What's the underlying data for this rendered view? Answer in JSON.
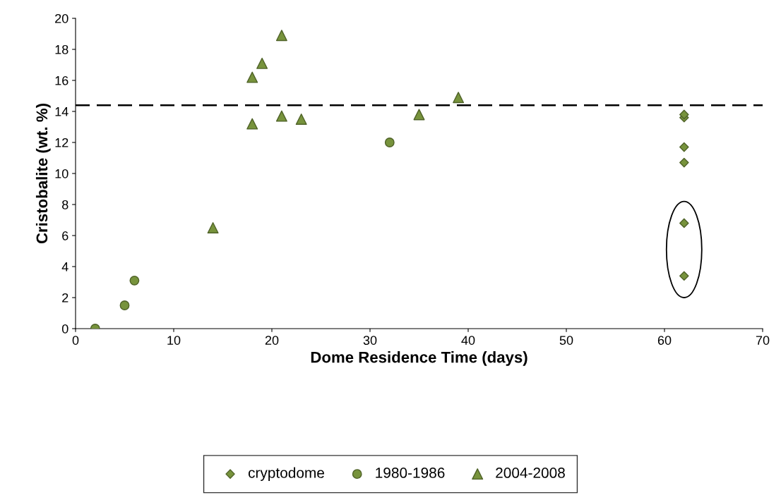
{
  "chart_data": {
    "type": "scatter",
    "xlabel": "Dome Residence Time (days)",
    "ylabel": "Cristobalite (wt. %)",
    "xlim": [
      0,
      70
    ],
    "xticks": [
      0,
      10,
      20,
      30,
      40,
      50,
      60,
      70
    ],
    "ylim": [
      0,
      20
    ],
    "yticks": [
      0,
      2,
      4,
      6,
      8,
      10,
      12,
      14,
      16,
      18,
      20
    ],
    "grid": false,
    "legend": "bottom",
    "ref_lines": [
      {
        "axis": "y",
        "value": 14.4,
        "color": "#000000",
        "line_style": "dashed"
      }
    ],
    "series": [
      {
        "name": "cryptodome",
        "color": "#77933c",
        "marker": "diamond",
        "x": [
          62,
          62,
          62,
          62,
          62,
          62
        ],
        "values": [
          13.8,
          13.6,
          11.7,
          10.7,
          6.8,
          3.4
        ]
      },
      {
        "name": "1980-1986",
        "color": "#77933c",
        "marker": "circle",
        "x": [
          2,
          5,
          6,
          32
        ],
        "values": [
          0,
          1.5,
          3.1,
          12.0
        ]
      },
      {
        "name": "2004-2008",
        "color": "#77933c",
        "marker": "triangle",
        "x": [
          14,
          18,
          18,
          19,
          21,
          21,
          23,
          35,
          39
        ],
        "values": [
          6.5,
          16.2,
          13.2,
          17.1,
          18.9,
          13.7,
          13.5,
          13.8,
          14.9
        ]
      }
    ]
  }
}
